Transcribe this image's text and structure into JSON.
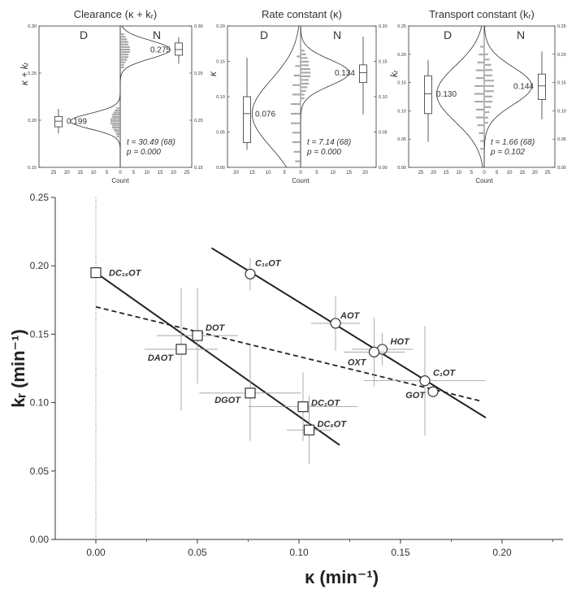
{
  "chart_data": [
    {
      "type": "distribution",
      "title": "Clearance (κ + kᵣ)",
      "ylabel": "κ + kᵣ",
      "xlabel": "Count",
      "group_left": "D",
      "group_right": "N",
      "ylim": [
        0.15,
        0.3
      ],
      "y_ticks": [
        "0.15",
        "0.20",
        "0.25",
        "0.30"
      ],
      "x_ticks_left": [
        "25",
        "20",
        "15",
        "10",
        "5"
      ],
      "x_ticks_right": [
        "0",
        "5",
        "10",
        "15",
        "20",
        "25"
      ],
      "box_D": {
        "min": 0.186,
        "q1": 0.193,
        "median": 0.199,
        "q3": 0.204,
        "max": 0.212
      },
      "box_N": {
        "min": 0.26,
        "q1": 0.269,
        "median": 0.275,
        "q3": 0.282,
        "max": 0.288
      },
      "mean_D_label": "0.199",
      "mean_N_label": "0.275",
      "stats_t": "t = 30.49 (68)",
      "stats_p": "p = 0.000"
    },
    {
      "type": "distribution",
      "title": "Rate constant (κ)",
      "ylabel": "κ",
      "xlabel": "Count",
      "group_left": "D",
      "group_right": "N",
      "ylim": [
        0.0,
        0.2
      ],
      "y_ticks": [
        "0.00",
        "0.05",
        "0.10",
        "0.15",
        "0.20"
      ],
      "x_ticks_left": [
        "20",
        "15",
        "10",
        "5"
      ],
      "x_ticks_right": [
        "0",
        "5",
        "10",
        "15",
        "20"
      ],
      "box_D": {
        "min": 0.025,
        "q1": 0.035,
        "median": 0.076,
        "q3": 0.1,
        "max": 0.155
      },
      "box_N": {
        "min": 0.075,
        "q1": 0.12,
        "median": 0.134,
        "q3": 0.145,
        "max": 0.185
      },
      "mean_D_label": "0.076",
      "mean_N_label": "0.134",
      "stats_t": "t = 7.14 (68)",
      "stats_p": "p = 0.000"
    },
    {
      "type": "distribution",
      "title": "Transport constant (kᵣ)",
      "ylabel": "kᵣ",
      "xlabel": "Count",
      "group_left": "D",
      "group_right": "N",
      "ylim": [
        0.0,
        0.25
      ],
      "y_ticks": [
        "0.00",
        "0.05",
        "0.10",
        "0.15",
        "0.20",
        "0.25"
      ],
      "x_ticks_left": [
        "25",
        "20",
        "15",
        "10",
        "5"
      ],
      "x_ticks_right": [
        "0",
        "5",
        "10",
        "15",
        "20",
        "25"
      ],
      "box_D": {
        "min": 0.045,
        "q1": 0.095,
        "median": 0.13,
        "q3": 0.162,
        "max": 0.19
      },
      "box_N": {
        "min": 0.085,
        "q1": 0.12,
        "median": 0.144,
        "q3": 0.165,
        "max": 0.205
      },
      "mean_D_label": "0.130",
      "mean_N_label": "0.144",
      "stats_t": "t = 1.66 (68)",
      "stats_p": "p = 0.102"
    },
    {
      "type": "scatter",
      "xlabel": "κ (min⁻¹)",
      "ylabel": "kᵣ (min⁻¹)",
      "xlim": [
        -0.02,
        0.23
      ],
      "ylim": [
        0.0,
        0.25
      ],
      "x_ticks": [
        "0.00",
        "0.05",
        "0.10",
        "0.15",
        "0.20"
      ],
      "y_ticks": [
        "0.00",
        "0.05",
        "0.10",
        "0.15",
        "0.20",
        "0.25"
      ],
      "series": [
        {
          "marker": "square",
          "points": [
            {
              "label": "DC₁₆OT",
              "x": 0.0,
              "y": 0.195
            },
            {
              "label": "DOT",
              "x": 0.05,
              "y": 0.149,
              "xerr": 0.02,
              "yerr": 0.035
            },
            {
              "label": "DAOT",
              "x": 0.042,
              "y": 0.139,
              "xerr": 0.018,
              "yerr": 0.045
            },
            {
              "label": "DGOT",
              "x": 0.076,
              "y": 0.107,
              "xerr": 0.025,
              "yerr": 0.035
            },
            {
              "label": "DC₁OT",
              "x": 0.102,
              "y": 0.097,
              "xerr": 0.027,
              "yerr": 0.025
            },
            {
              "label": "DC₆OT",
              "x": 0.105,
              "y": 0.08,
              "xerr": 0.011,
              "yerr": 0.025
            }
          ],
          "fit_line": {
            "x": [
              0.0,
              0.12
            ],
            "y": [
              0.195,
              0.069
            ]
          }
        },
        {
          "marker": "circle",
          "points": [
            {
              "label": "C₁₆OT",
              "x": 0.076,
              "y": 0.194,
              "yerr": 0.012
            },
            {
              "label": "AOT",
              "x": 0.118,
              "y": 0.158,
              "xerr": 0.012,
              "yerr": 0.02
            },
            {
              "label": "HOT",
              "x": 0.141,
              "y": 0.139,
              "xerr": 0.015,
              "yerr": 0.012
            },
            {
              "label": "OXT",
              "x": 0.137,
              "y": 0.137,
              "xerr": 0.015,
              "yerr": 0.025
            },
            {
              "label": "C₁OT",
              "x": 0.162,
              "y": 0.116,
              "xerr": 0.03,
              "yerr": 0.04
            },
            {
              "label": "GOT",
              "x": 0.166,
              "y": 0.108
            }
          ],
          "fit_line": {
            "x": [
              0.057,
              0.192
            ],
            "y": [
              0.213,
              0.089
            ]
          }
        }
      ],
      "overall_fit_line": {
        "x": [
          0.0,
          0.19
        ],
        "y": [
          0.17,
          0.101
        ]
      }
    }
  ]
}
